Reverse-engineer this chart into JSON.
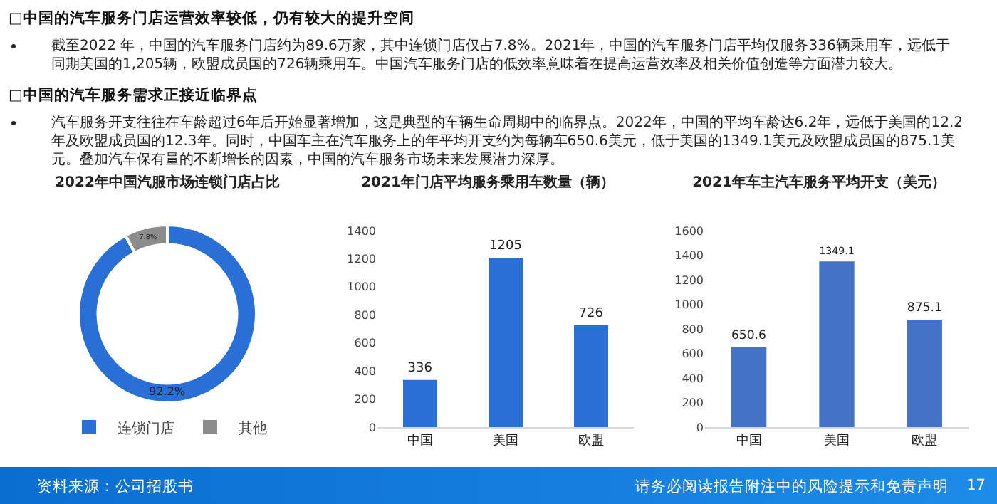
{
  "chart_data": [
    {
      "type": "other",
      "annotations": [
        "□中国的汽车服务门店运营效率较低，仍有较大的提升空间",
        "截至2022 年，中国的汽车服务门店约为89.6万家，其中连锁门店仅占7.8%。2021年，中国的汽车服务门店平均仅服务336辆乘用车，远低于同期美国的1,205辆，欧盟成员国的726辆乘用车。中国汽车服务门店的低效率意味着在提高运营效率及相关价值创造等方面潜力较大。",
        "□中国的汽车服务需求正接近临界点",
        "汽车服务开支往往在车龄超过6年后开始显著增加，这是典型的车辆生命周期中的临界点。2022年，中国的平均车龄达6.2年，远低于美国的12.2年及欧盟成员国的12.3年。同时，中国车主在汽车服务上的年平均开支约为每辆车650.6美元，低于美国的1349.1美元及欧盟成员国的875.1美元。叠加汽车保有量的不断增长的因素，中国的汽车服务市场未来发展潜力深厚。",
        "资料来源：公司招股书",
        "请务必阅读报告附注中的风险提示和免责声明",
        "17"
      ]
    },
    {
      "type": "donut",
      "title": "2022年中国汽服市场连锁门店占比",
      "categories": [
        "连锁门店",
        "其他"
      ],
      "values": [
        92.2,
        7.8
      ],
      "colors": [
        "#2a6fd6",
        "#8c8c8c"
      ],
      "value_labels": [
        "92.2%",
        "7.8%"
      ],
      "legend": "bottom"
    },
    {
      "type": "bar",
      "title": "2021年门店平均服务乘用车数量（辆）",
      "categories": [
        "中国",
        "美国",
        "欧盟"
      ],
      "values": [
        336,
        1205,
        726
      ],
      "color": "#2a6fd6",
      "ylim": [
        0,
        1400
      ],
      "yticks": [
        0,
        200,
        400,
        600,
        800,
        1000,
        1200,
        1400
      ],
      "data_labels": true
    },
    {
      "type": "bar",
      "title": "2021年车主汽车服务平均开支（美元）",
      "categories": [
        "中国",
        "美国",
        "欧盟"
      ],
      "values": [
        650.6,
        1349.1,
        875.1
      ],
      "color": "#4472c4",
      "ylim": [
        0,
        1600
      ],
      "yticks": [
        0,
        200,
        400,
        600,
        800,
        1000,
        1200,
        1400,
        1600
      ],
      "data_labels": true
    }
  ]
}
